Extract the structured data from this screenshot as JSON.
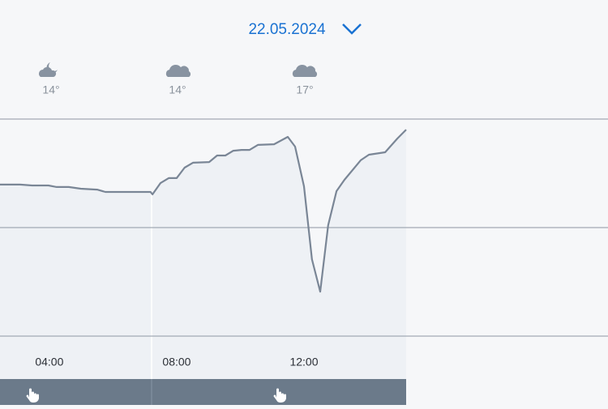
{
  "header": {
    "date": "22.05.2024"
  },
  "forecast": [
    {
      "temp": "14°"
    },
    {
      "temp": "14°"
    },
    {
      "temp": "17°"
    }
  ],
  "chart_data": {
    "type": "line",
    "x": [
      2.45,
      3.08,
      3.46,
      3.97,
      4.23,
      4.61,
      4.99,
      5.5,
      5.76,
      7.18,
      7.24,
      7.49,
      7.75,
      8.0,
      8.25,
      8.51,
      9.02,
      9.27,
      9.53,
      9.78,
      10.04,
      10.29,
      10.55,
      11.06,
      11.49,
      11.72,
      12.0,
      12.25,
      12.51,
      12.76,
      13.02,
      13.27,
      13.78,
      14.04,
      14.55,
      14.93,
      15.21
    ],
    "values": [
      69.8,
      69.8,
      69.4,
      69.4,
      68.7,
      68.7,
      67.9,
      67.5,
      66.4,
      66.4,
      65.3,
      70.5,
      72.8,
      72.8,
      77.6,
      79.9,
      80.2,
      83.2,
      83.2,
      85.4,
      85.8,
      85.8,
      88.1,
      88.4,
      91.8,
      87.3,
      69.0,
      35.4,
      20.5,
      51.1,
      66.8,
      72.0,
      81.0,
      83.6,
      84.7,
      91.0,
      95.1
    ],
    "color": "#7a8696",
    "xlim": [
      2.45,
      21.55
    ],
    "xticks": [
      {
        "value": 4,
        "label": "04:00"
      },
      {
        "value": 8,
        "label": "08:00"
      },
      {
        "value": 12,
        "label": "12:00"
      }
    ],
    "ylim": [
      0,
      100
    ],
    "yticks": [
      0,
      50,
      100
    ],
    "grid": true
  }
}
